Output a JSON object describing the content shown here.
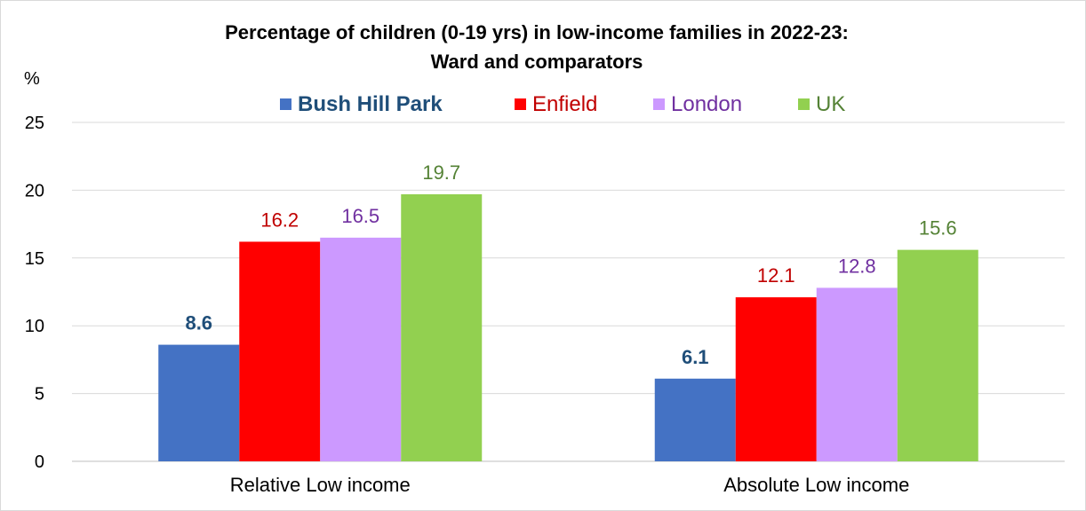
{
  "chart_data": {
    "type": "bar",
    "title": "Percentage of children (0-19 yrs) in low-income families in 2022-23:",
    "subtitle": "Ward and comparators",
    "ylabel": "%",
    "xlabel": "",
    "ylim": [
      0,
      25
    ],
    "yticks": [
      0,
      5,
      10,
      15,
      20,
      25
    ],
    "grid": true,
    "legend_position": "top",
    "categories": [
      "Relative Low income",
      "Absolute Low income"
    ],
    "series": [
      {
        "name": "Bush Hill Park",
        "values": [
          8.6,
          6.1
        ],
        "color": "#4472c4",
        "label_color": "#1f4e79",
        "bold": true
      },
      {
        "name": "Enfield",
        "values": [
          16.2,
          12.1
        ],
        "color": "#ff0000",
        "label_color": "#c00000",
        "bold": false
      },
      {
        "name": "London",
        "values": [
          16.5,
          12.8
        ],
        "color": "#cc99ff",
        "label_color": "#7030a0",
        "bold": false
      },
      {
        "name": "UK",
        "values": [
          19.7,
          15.6
        ],
        "color": "#92d050",
        "label_color": "#548235",
        "bold": false
      }
    ]
  }
}
